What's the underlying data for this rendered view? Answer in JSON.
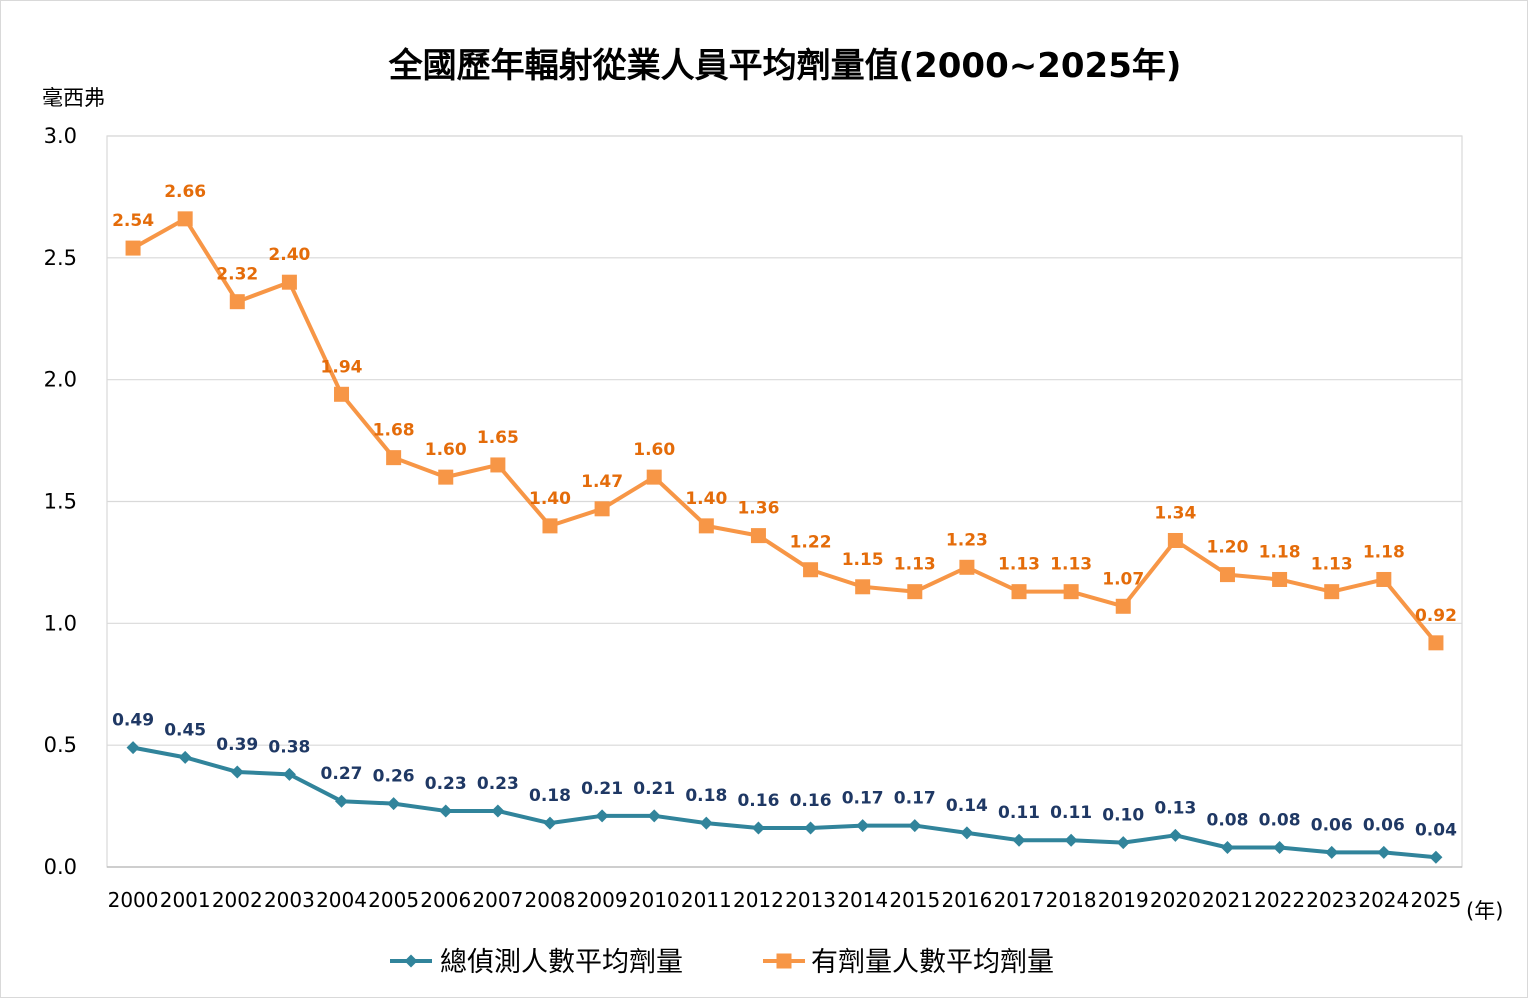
{
  "chart_data": {
    "type": "line",
    "title": "全國歷年輻射從業人員平均劑量值(2000~2025年)",
    "ylabel": "毫西弗",
    "xlabel": "(年)",
    "ylim": [
      0,
      3.0
    ],
    "yticks": [
      "0.0",
      "0.5",
      "1.0",
      "1.5",
      "2.0",
      "2.5",
      "3.0"
    ],
    "grid": true,
    "legend_position": "bottom",
    "categories": [
      "2000",
      "2001",
      "2002",
      "2003",
      "2004",
      "2005",
      "2006",
      "2007",
      "2008",
      "2009",
      "2010",
      "2011",
      "2012",
      "2013",
      "2014",
      "2015",
      "2016",
      "2017",
      "2018",
      "2019",
      "2020",
      "2021",
      "2022",
      "2023",
      "2024",
      "2025"
    ],
    "series": [
      {
        "name": "總偵測人數平均劑量",
        "color": "#31849b",
        "label_color": "#1f3864",
        "marker": "diamond",
        "values": [
          0.49,
          0.45,
          0.39,
          0.38,
          0.27,
          0.26,
          0.23,
          0.23,
          0.18,
          0.21,
          0.21,
          0.18,
          0.16,
          0.16,
          0.17,
          0.17,
          0.14,
          0.11,
          0.11,
          0.1,
          0.13,
          0.08,
          0.08,
          0.06,
          0.06,
          0.04
        ],
        "labels": [
          "0.49",
          "0.45",
          "0.39",
          "0.38",
          "0.27",
          "0.26",
          "0.23",
          "0.23",
          "0.18",
          "0.21",
          "0.21",
          "0.18",
          "0.16",
          "0.16",
          "0.17",
          "0.17",
          "0.14",
          "0.11",
          "0.11",
          "0.10",
          "0.13",
          "0.08",
          "0.08",
          "0.06",
          "0.06",
          "0.04"
        ]
      },
      {
        "name": "有劑量人數平均劑量",
        "color": "#f79646",
        "label_color": "#e46c0a",
        "marker": "square",
        "values": [
          2.54,
          2.66,
          2.32,
          2.4,
          1.94,
          1.68,
          1.6,
          1.65,
          1.4,
          1.47,
          1.6,
          1.4,
          1.36,
          1.22,
          1.15,
          1.13,
          1.23,
          1.13,
          1.13,
          1.07,
          1.34,
          1.2,
          1.18,
          1.13,
          1.18,
          0.92
        ],
        "labels": [
          "2.54",
          "2.66",
          "2.32",
          "2.40",
          "1.94",
          "1.68",
          "1.60",
          "1.65",
          "1.40",
          "1.47",
          "1.60",
          "1.40",
          "1.36",
          "1.22",
          "1.15",
          "1.13",
          "1.23",
          "1.13",
          "1.13",
          "1.07",
          "1.34",
          "1.20",
          "1.18",
          "1.13",
          "1.18",
          "0.92"
        ]
      }
    ]
  }
}
